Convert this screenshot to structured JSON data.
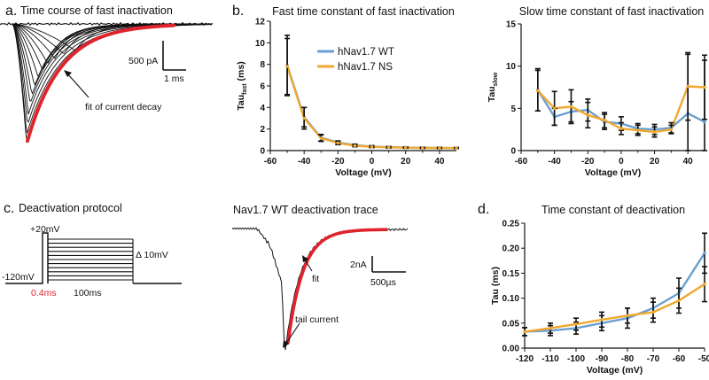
{
  "panels": {
    "a": {
      "letter": "a.",
      "title": "Time course of fast inactivation",
      "scale_current": "500 pA",
      "scale_time": "1 ms",
      "annotation": "fit of current decay"
    },
    "b": {
      "letter": "b."
    },
    "c": {
      "letter": "c.",
      "title": "Deactivation protocol",
      "label_top": "+20mV",
      "label_hold": "-120mV",
      "label_pulse": "0.4ms",
      "label_dur": "100ms",
      "label_step": "Δ 10mV"
    },
    "c2": {
      "title": "Nav1.7 WT deactivation trace",
      "scale_current": "2nA",
      "scale_time": "500µs",
      "label_fit": "fit",
      "label_tail": "tail current"
    },
    "d": {
      "letter": "d."
    }
  },
  "colors": {
    "wt": "#6a9fd0",
    "ns": "#f0a830",
    "fit": "#e0242e",
    "error": "#111111",
    "trace": "#111111"
  },
  "chart_data": [
    {
      "id": "fast",
      "type": "line",
      "title": "Fast time constant of fast inactivation",
      "xlabel": "Voltage (mV)",
      "ylabel": "Tau",
      "ylabel_sub": "fast",
      "ylabel_unit": " (ms)",
      "xlim": [
        -60,
        50
      ],
      "ylim": [
        0,
        12
      ],
      "xticks": [
        -60,
        -40,
        -20,
        0,
        20,
        40
      ],
      "yticks": [
        0,
        2,
        4,
        6,
        8,
        10,
        12
      ],
      "legend": "top-center",
      "x": [
        -50,
        -40,
        -30,
        -20,
        -10,
        0,
        10,
        20,
        30,
        40,
        50
      ],
      "series": [
        {
          "name": "hNav1.7 WT",
          "color": "wt",
          "values": [
            7.9,
            3.1,
            1.2,
            0.75,
            0.5,
            0.38,
            0.32,
            0.28,
            0.26,
            0.25,
            0.24
          ],
          "err": [
            2.8,
            0.9,
            0.3,
            0.15,
            0.1,
            0.08,
            0.06,
            0.05,
            0.05,
            0.05,
            0.05
          ]
        },
        {
          "name": "hNav1.7 NS",
          "color": "ns",
          "values": [
            7.8,
            3.0,
            1.15,
            0.7,
            0.45,
            0.35,
            0.3,
            0.27,
            0.25,
            0.24,
            0.23
          ],
          "err": [
            2.6,
            1.0,
            0.3,
            0.15,
            0.1,
            0.08,
            0.06,
            0.05,
            0.05,
            0.05,
            0.05
          ]
        }
      ]
    },
    {
      "id": "slow",
      "type": "line",
      "title": "Slow time constant of fast inactivation",
      "xlabel": "Voltage (mV)",
      "ylabel": "Tau",
      "ylabel_sub": "slow",
      "ylabel_unit": "",
      "xlim": [
        -60,
        50
      ],
      "ylim": [
        0,
        15
      ],
      "xticks": [
        -60,
        -40,
        -20,
        0,
        20,
        40
      ],
      "yticks": [
        0,
        5,
        10,
        15
      ],
      "x": [
        -50,
        -40,
        -30,
        -20,
        -10,
        0,
        10,
        20,
        30,
        40,
        50
      ],
      "series": [
        {
          "name": "hNav1.7 WT",
          "color": "wt",
          "values": [
            7.2,
            4.0,
            4.6,
            4.8,
            3.4,
            3.2,
            2.6,
            2.5,
            2.7,
            4.4,
            3.4
          ],
          "err": [
            2.5,
            1.0,
            1.2,
            1.3,
            0.9,
            0.8,
            0.6,
            0.6,
            0.6,
            7.0,
            7.3
          ]
        },
        {
          "name": "hNav1.7 NS",
          "color": "ns",
          "values": [
            7.1,
            5.0,
            5.2,
            4.2,
            3.6,
            2.6,
            2.4,
            2.2,
            2.5,
            7.6,
            7.5
          ],
          "err": [
            2.4,
            2.0,
            2.0,
            1.5,
            0.9,
            0.7,
            0.6,
            0.6,
            0.5,
            4.0,
            3.8
          ]
        }
      ]
    },
    {
      "id": "deact",
      "type": "line",
      "title": "Time constant of deactivation",
      "xlabel": "Voltage (mV)",
      "ylabel": "Tau (ms)",
      "xlim": [
        -120,
        -50
      ],
      "ylim": [
        0,
        0.25
      ],
      "xticks": [
        -120,
        -110,
        -100,
        -90,
        -80,
        -70,
        -60,
        -50
      ],
      "yticks": [
        0.0,
        0.05,
        0.1,
        0.15,
        0.2,
        0.25
      ],
      "ytick_labels": [
        "0.00",
        "0.05",
        "0.10",
        "0.15",
        "0.20",
        "0.25"
      ],
      "x": [
        -120,
        -110,
        -100,
        -90,
        -80,
        -70,
        -60,
        -50
      ],
      "series": [
        {
          "name": "hNav1.7 WT",
          "color": "wt",
          "values": [
            0.033,
            0.035,
            0.04,
            0.05,
            0.06,
            0.08,
            0.11,
            0.19
          ],
          "err": [
            0.008,
            0.01,
            0.012,
            0.015,
            0.02,
            0.02,
            0.03,
            0.04
          ]
        },
        {
          "name": "hNav1.7 NS",
          "color": "ns",
          "values": [
            0.033,
            0.04,
            0.048,
            0.057,
            0.065,
            0.072,
            0.095,
            0.128
          ],
          "err": [
            0.008,
            0.01,
            0.012,
            0.015,
            0.015,
            0.02,
            0.025,
            0.035
          ]
        }
      ]
    }
  ]
}
